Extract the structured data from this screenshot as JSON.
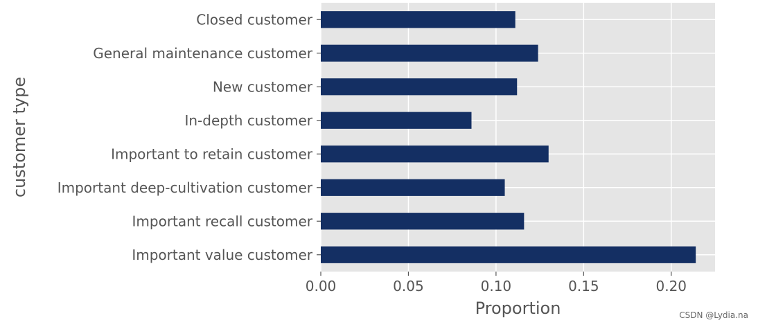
{
  "chart_data": {
    "type": "bar",
    "orientation": "horizontal",
    "categories": [
      "Closed customer",
      "General maintenance customer",
      "New customer",
      "In-depth customer",
      "Important to retain customer",
      "Important deep-cultivation customer",
      "Important recall customer",
      "Important value customer"
    ],
    "values": [
      0.111,
      0.124,
      0.112,
      0.086,
      0.13,
      0.105,
      0.116,
      0.214
    ],
    "xlabel": "Proportion",
    "ylabel": "customer type",
    "xlim": [
      0,
      0.225
    ],
    "xticks": [
      "0.00",
      "0.05",
      "0.10",
      "0.15",
      "0.20"
    ],
    "grid": true,
    "colors": {
      "bar": "#142f63",
      "plot_background": "#e5e5e5",
      "grid": "#ffffff"
    }
  },
  "watermark": "CSDN @Lydia.na"
}
